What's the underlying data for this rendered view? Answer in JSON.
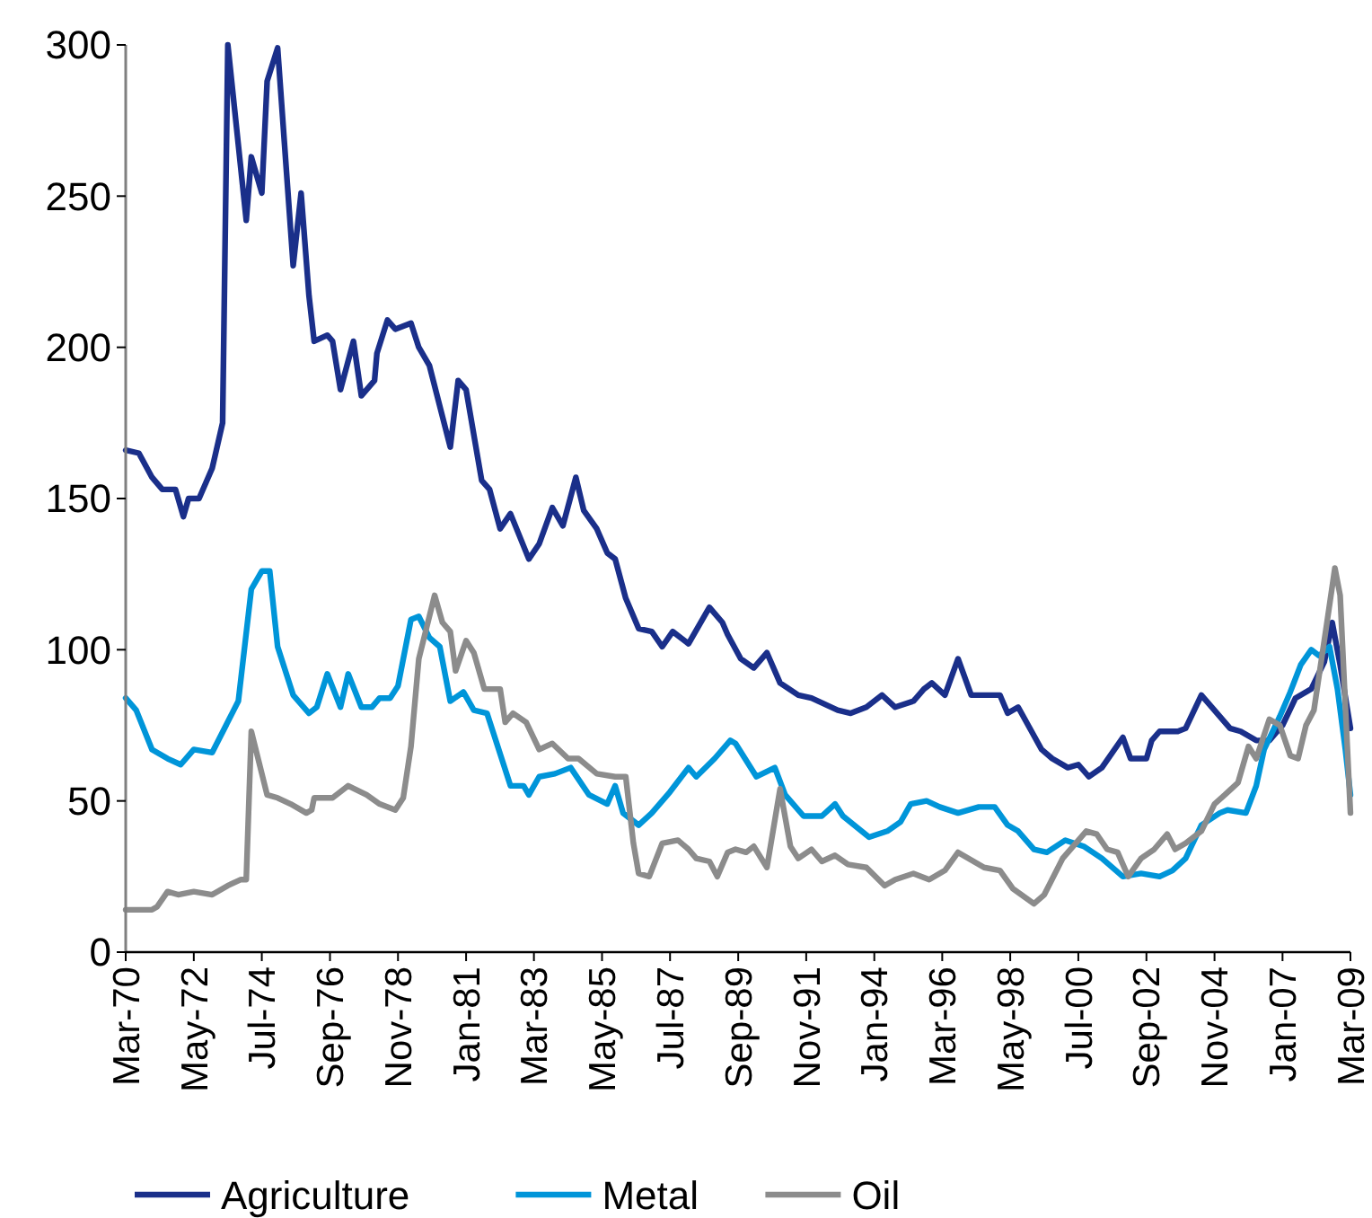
{
  "chart_data": {
    "type": "line",
    "legend": "bottom",
    "marker": "none",
    "line_style": "solid",
    "grid": false,
    "ylim": [
      0,
      300
    ],
    "yticks": [
      0,
      50,
      100,
      150,
      200,
      250,
      300
    ],
    "xlim": [
      "1970-03",
      "2009-03"
    ],
    "xticks": [
      {
        "value": "1970-03",
        "label": "Mar-70"
      },
      {
        "value": "1972-05",
        "label": "May-72"
      },
      {
        "value": "1974-07",
        "label": "Jul-74"
      },
      {
        "value": "1976-09",
        "label": "Sep-76"
      },
      {
        "value": "1978-11",
        "label": "Nov-78"
      },
      {
        "value": "1981-01",
        "label": "Jan-81"
      },
      {
        "value": "1983-03",
        "label": "Mar-83"
      },
      {
        "value": "1985-05",
        "label": "May-85"
      },
      {
        "value": "1987-07",
        "label": "Jul-87"
      },
      {
        "value": "1989-09",
        "label": "Sep-89"
      },
      {
        "value": "1991-11",
        "label": "Nov-91"
      },
      {
        "value": "1994-01",
        "label": "Jan-94"
      },
      {
        "value": "1996-03",
        "label": "Mar-96"
      },
      {
        "value": "1998-05",
        "label": "May-98"
      },
      {
        "value": "2000-07",
        "label": "Jul-00"
      },
      {
        "value": "2002-09",
        "label": "Sep-02"
      },
      {
        "value": "2004-11",
        "label": "Nov-04"
      },
      {
        "value": "2007-01",
        "label": "Jan-07"
      },
      {
        "value": "2009-03",
        "label": "Mar-09"
      }
    ],
    "series": [
      {
        "name": "Agriculture",
        "color": "#1a2f8a",
        "x": [
          "1970-03",
          "1970-08",
          "1971-01",
          "1971-05",
          "1971-10",
          "1972-01",
          "1972-03",
          "1972-07",
          "1972-12",
          "1973-04",
          "1973-06",
          "1974-01",
          "1974-03",
          "1974-07",
          "1974-09",
          "1975-01",
          "1975-07",
          "1975-10",
          "1976-01",
          "1976-03",
          "1976-08",
          "1976-10",
          "1977-01",
          "1977-06",
          "1977-09",
          "1978-02",
          "1978-03",
          "1978-07",
          "1978-10",
          "1979-04",
          "1979-07",
          "1979-11",
          "1980-07",
          "1980-10",
          "1981-01",
          "1981-07",
          "1981-10",
          "1982-02",
          "1982-06",
          "1983-01",
          "1983-05",
          "1983-10",
          "1984-02",
          "1984-07",
          "1984-10",
          "1985-03",
          "1985-07",
          "1985-10",
          "1986-02",
          "1986-07",
          "1986-12",
          "1987-04",
          "1987-08",
          "1988-02",
          "1988-10",
          "1989-03",
          "1989-05",
          "1989-10",
          "1990-03",
          "1990-08",
          "1991-01",
          "1991-08",
          "1992-01",
          "1992-11",
          "1993-04",
          "1993-10",
          "1994-04",
          "1994-09",
          "1995-04",
          "1995-08",
          "1995-11",
          "1996-04",
          "1996-09",
          "1997-02",
          "1998-01",
          "1998-04",
          "1998-08",
          "1999-05",
          "1999-09",
          "2000-03",
          "2000-07",
          "2000-11",
          "2001-04",
          "2001-12",
          "2002-03",
          "2002-09",
          "2002-11",
          "2003-02",
          "2003-09",
          "2003-12",
          "2004-06",
          "2004-10",
          "2005-05",
          "2005-09",
          "2006-03",
          "2006-08",
          "2007-01",
          "2007-06",
          "2007-12",
          "2008-05",
          "2008-08",
          "2008-11",
          "2009-03"
        ],
        "values": [
          166,
          165,
          157,
          153,
          153,
          144,
          150,
          150,
          160,
          175,
          300,
          242,
          263,
          251,
          288,
          299,
          227,
          251,
          217,
          202,
          204,
          202,
          186,
          202,
          184,
          189,
          198,
          209,
          206,
          208,
          200,
          194,
          167,
          189,
          186,
          156,
          153,
          140,
          145,
          130,
          135,
          147,
          141,
          157,
          146,
          140,
          132,
          130,
          117,
          107,
          106,
          101,
          106,
          102,
          114,
          109,
          105,
          97,
          94,
          99,
          89,
          85,
          84,
          80,
          79,
          81,
          85,
          81,
          83,
          87,
          89,
          85,
          97,
          85,
          85,
          79,
          81,
          67,
          64,
          61,
          62,
          58,
          61,
          71,
          64,
          64,
          70,
          73,
          73,
          74,
          85,
          81,
          74,
          73,
          70,
          70,
          75,
          84,
          87,
          96,
          109,
          95,
          74
        ]
      },
      {
        "name": "Metal",
        "color": "#0095d9",
        "x": [
          "1970-03",
          "1970-07",
          "1971-01",
          "1971-07",
          "1971-12",
          "1972-05",
          "1972-12",
          "1973-10",
          "1974-03",
          "1974-07",
          "1974-10",
          "1975-01",
          "1975-07",
          "1976-01",
          "1976-04",
          "1976-08",
          "1977-01",
          "1977-04",
          "1977-09",
          "1978-01",
          "1978-04",
          "1978-08",
          "1978-11",
          "1979-04",
          "1979-07",
          "1979-11",
          "1980-03",
          "1980-07",
          "1980-12",
          "1981-04",
          "1981-09",
          "1982-06",
          "1982-11",
          "1983-01",
          "1983-05",
          "1983-11",
          "1984-05",
          "1984-12",
          "1985-07",
          "1985-10",
          "1986-01",
          "1986-07",
          "1986-12",
          "1987-07",
          "1988-02",
          "1988-05",
          "1988-12",
          "1989-06",
          "1989-08",
          "1990-04",
          "1990-11",
          "1991-03",
          "1991-10",
          "1992-05",
          "1992-10",
          "1993-01",
          "1993-11",
          "1994-06",
          "1994-11",
          "1995-03",
          "1995-09",
          "1996-02",
          "1996-09",
          "1997-05",
          "1997-11",
          "1998-04",
          "1998-08",
          "1999-02",
          "1999-07",
          "2000-02",
          "2000-09",
          "2001-04",
          "2001-12",
          "2002-07",
          "2003-02",
          "2003-07",
          "2003-12",
          "2004-06",
          "2005-01",
          "2005-04",
          "2005-11",
          "2006-03",
          "2006-06",
          "2006-12",
          "2007-04",
          "2007-08",
          "2007-12",
          "2008-03",
          "2008-07",
          "2008-10",
          "2009-01",
          "2009-03"
        ],
        "values": [
          84,
          80,
          67,
          64,
          62,
          67,
          66,
          83,
          120,
          126,
          126,
          101,
          85,
          79,
          81,
          92,
          81,
          92,
          81,
          81,
          84,
          84,
          88,
          110,
          111,
          104,
          101,
          83,
          86,
          80,
          79,
          55,
          55,
          52,
          58,
          59,
          61,
          52,
          49,
          55,
          46,
          42,
          46,
          53,
          61,
          58,
          64,
          70,
          69,
          58,
          61,
          52,
          45,
          45,
          49,
          45,
          38,
          40,
          43,
          49,
          50,
          48,
          46,
          48,
          48,
          42,
          40,
          34,
          33,
          37,
          35,
          31,
          25,
          26,
          25,
          27,
          31,
          42,
          46,
          47,
          46,
          55,
          67,
          78,
          86,
          95,
          100,
          98,
          101,
          87,
          67,
          52
        ]
      },
      {
        "name": "Oil",
        "color": "#8c8c8c",
        "x": [
          "1970-03",
          "1971-01",
          "1971-03",
          "1971-07",
          "1971-11",
          "1972-05",
          "1972-12",
          "1973-06",
          "1973-11",
          "1974-01",
          "1974-03",
          "1974-09",
          "1975-01",
          "1975-06",
          "1975-12",
          "1976-02",
          "1976-03",
          "1976-10",
          "1977-04",
          "1977-11",
          "1978-04",
          "1978-10",
          "1979-01",
          "1979-04",
          "1979-07",
          "1979-11",
          "1980-01",
          "1980-04",
          "1980-07",
          "1980-09",
          "1981-01",
          "1981-04",
          "1981-08",
          "1982-02",
          "1982-04",
          "1982-07",
          "1982-12",
          "1983-05",
          "1983-10",
          "1984-04",
          "1984-08",
          "1985-03",
          "1985-10",
          "1986-02",
          "1986-05",
          "1986-07",
          "1986-11",
          "1987-04",
          "1987-10",
          "1988-02",
          "1988-05",
          "1988-10",
          "1989-01",
          "1989-05",
          "1989-08",
          "1989-12",
          "1990-03",
          "1990-08",
          "1991-01",
          "1991-05",
          "1991-08",
          "1992-01",
          "1992-05",
          "1992-10",
          "1993-03",
          "1993-10",
          "1994-05",
          "1994-09",
          "1995-04",
          "1995-10",
          "1996-04",
          "1996-09",
          "1997-07",
          "1998-01",
          "1998-06",
          "1999-02",
          "1999-06",
          "2000-01",
          "2000-10",
          "2001-02",
          "2001-06",
          "2001-10",
          "2002-02",
          "2002-07",
          "2002-12",
          "2003-05",
          "2003-08",
          "2003-12",
          "2004-06",
          "2004-11",
          "2005-03",
          "2005-08",
          "2005-12",
          "2006-03",
          "2006-08",
          "2006-12",
          "2007-04",
          "2007-07",
          "2007-10",
          "2008-01",
          "2008-06",
          "2008-09",
          "2008-11",
          "2009-03"
        ],
        "values": [
          14,
          14,
          15,
          20,
          19,
          20,
          19,
          22,
          24,
          24,
          73,
          52,
          51,
          49,
          46,
          47,
          51,
          51,
          55,
          52,
          49,
          47,
          51,
          68,
          97,
          111,
          118,
          109,
          106,
          93,
          103,
          99,
          87,
          87,
          76,
          79,
          76,
          67,
          69,
          64,
          64,
          59,
          58,
          58,
          36,
          26,
          25,
          36,
          37,
          34,
          31,
          30,
          25,
          33,
          34,
          33,
          35,
          28,
          54,
          35,
          31,
          34,
          30,
          32,
          29,
          28,
          22,
          24,
          26,
          24,
          27,
          33,
          28,
          27,
          21,
          16,
          19,
          31,
          40,
          39,
          34,
          33,
          25,
          31,
          34,
          39,
          34,
          36,
          40,
          49,
          52,
          56,
          68,
          64,
          77,
          75,
          65,
          64,
          75,
          80,
          109,
          127,
          118,
          46
        ]
      }
    ]
  }
}
